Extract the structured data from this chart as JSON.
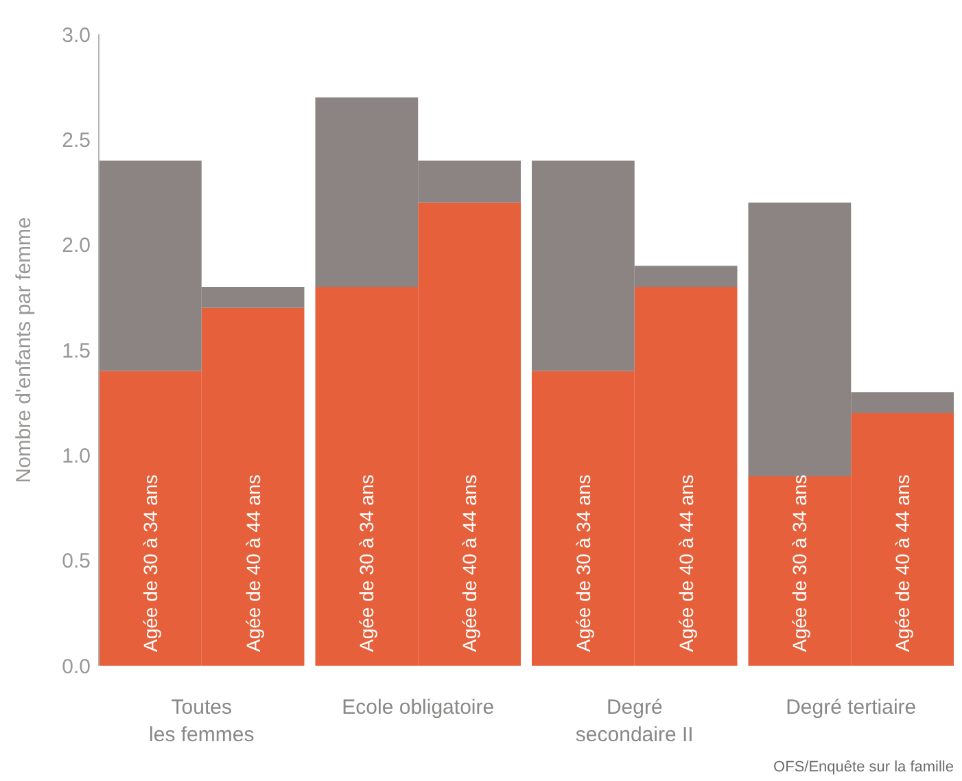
{
  "chart_data": {
    "type": "bar",
    "stacked": true,
    "ylabel": "Nombre d'enfants par femme",
    "categories": [
      "Agée de 30 à 34 ans",
      "Agée de 40 à 44 ans",
      "Agée de 30 à 34 ans",
      "Agée de 40 à 44 ans",
      "Agée de 30 à 34 ans",
      "Agée de 40 à 44 ans",
      "Agée de 30 à 34 ans",
      "Agée de 40 à 44 ans"
    ],
    "series": [
      {
        "color": "#e5603b",
        "values": [
          1.4,
          1.7,
          1.8,
          2.2,
          1.4,
          1.8,
          0.9,
          1.2
        ]
      },
      {
        "color": "#8b8482",
        "values": [
          1.0,
          0.1,
          0.9,
          0.2,
          1.0,
          0.1,
          1.3,
          0.1
        ]
      }
    ],
    "ylim": [
      0,
      3
    ],
    "yticks": [
      {
        "value": 0,
        "label": "0.0"
      },
      {
        "value": 0.5,
        "label": "0.5"
      },
      {
        "value": 1,
        "label": "1.0"
      },
      {
        "value": 1.5,
        "label": "1.5"
      },
      {
        "value": 2,
        "label": "2.0"
      },
      {
        "value": 2.5,
        "label": "2.5"
      },
      {
        "value": 3,
        "label": "3.0"
      }
    ],
    "annotations": [
      "Toutes\nles femmes",
      "Ecole obligatoire",
      "Degré\nsecondaire II",
      "Degré tertiaire",
      "OFS/Enquête sur la famille"
    ]
  }
}
